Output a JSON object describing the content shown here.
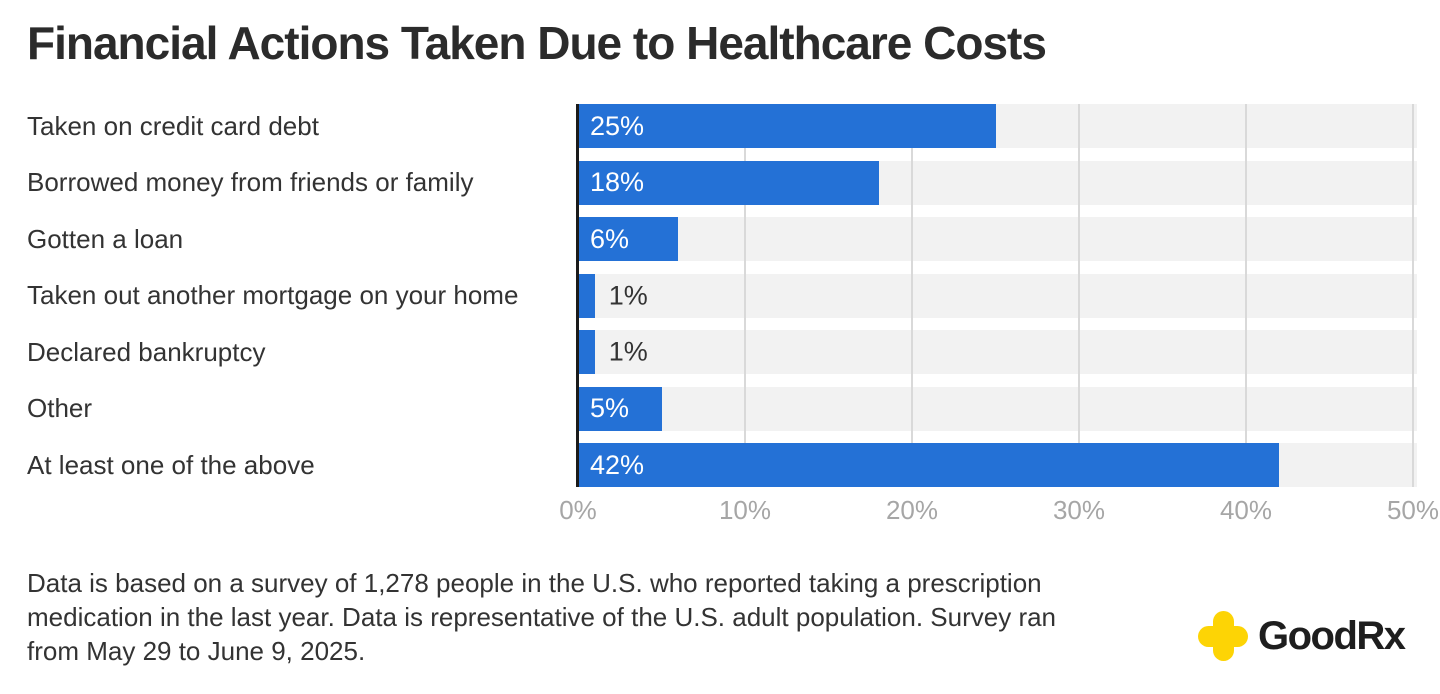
{
  "title": "Financial Actions Taken Due to Healthcare Costs",
  "chart_data": {
    "type": "bar",
    "orientation": "horizontal",
    "title": "Financial Actions Taken Due to Healthcare Costs",
    "categories": [
      "Taken on credit card debt",
      "Borrowed money from friends or family",
      "Gotten a loan",
      "Taken out another mortgage on your home",
      "Declared bankruptcy",
      "Other",
      "At least one of the above"
    ],
    "values": [
      25,
      18,
      6,
      1,
      1,
      5,
      42
    ],
    "value_labels": [
      "25%",
      "18%",
      "6%",
      "1%",
      "1%",
      "5%",
      "42%"
    ],
    "x_ticks": [
      "0%",
      "10%",
      "20%",
      "30%",
      "40%",
      "50%"
    ],
    "x_tick_values": [
      0,
      10,
      20,
      30,
      40,
      50
    ],
    "xlim": [
      0,
      50
    ],
    "xlabel": "",
    "ylabel": "",
    "grid": true,
    "legend": false,
    "value_label_inside_threshold": 5
  },
  "theme": {
    "bar_color": "#2471d6",
    "band_color": "#f2f2f2",
    "grid_color": "#d9d9d9",
    "axis_color": "#1a1a1a",
    "tick_label_color": "#a6a6a6",
    "title_color": "#2b2b2b",
    "text_color": "#333333",
    "logo_yellow": "#fdd405",
    "logo_text_color": "#1e1e1e"
  },
  "footer": {
    "lines": [
      "Data is based on a survey of 1,278 people in the U.S. who reported taking a prescription",
      "medication in the last year. Data is representative of the U.S. adult population. Survey ran",
      "from May 29 to June 9, 2025."
    ]
  },
  "logo": {
    "text_bold": "Good",
    "text_regular": "Rx"
  }
}
